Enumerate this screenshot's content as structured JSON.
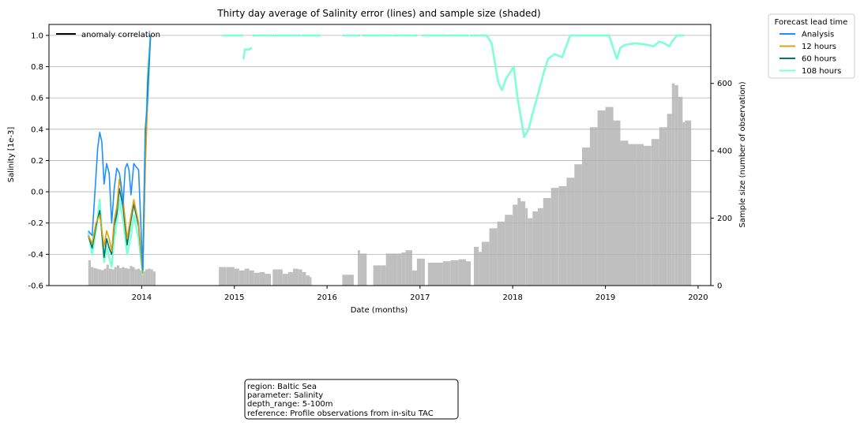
{
  "chart_data": {
    "type": "line",
    "title": "Thirty day average of Salinity error (lines) and sample size (shaded)",
    "xlabel": "Date (months)",
    "ylabel": "Salinity [1e-3]",
    "y2label": "Sample size (number of observation)",
    "xlim": [
      "2013-01-01",
      "2020-02-20"
    ],
    "ylim": [
      -0.6,
      1.07
    ],
    "y2lim": [
      0,
      775
    ],
    "x_ticks": [
      "2014",
      "2015",
      "2016",
      "2017",
      "2018",
      "2019",
      "2020"
    ],
    "y_ticks": [
      "-0.6",
      "-0.4",
      "-0.2",
      "0.0",
      "0.2",
      "0.4",
      "0.6",
      "0.8",
      "1.0"
    ],
    "y2_ticks": [
      "0",
      "200",
      "400",
      "600"
    ],
    "grid": true,
    "legend_title": "Forecast lead time",
    "legend_placement": "outside top-right",
    "anomaly_legend": {
      "label": "anomaly correlation",
      "color": "#000000",
      "placement": "top-left"
    },
    "series": [
      {
        "name": "Analysis",
        "color": "#1e90ff",
        "x": [
          "2013-06-05",
          "2013-06-20",
          "2013-07-05",
          "2013-07-12",
          "2013-07-20",
          "2013-07-28",
          "2013-08-06",
          "2013-08-16",
          "2013-08-26",
          "2013-09-05",
          "2013-09-15",
          "2013-09-25",
          "2013-10-05",
          "2013-10-12",
          "2013-10-20",
          "2013-10-28",
          "2013-11-05",
          "2013-11-12",
          "2013-11-20",
          "2013-12-01",
          "2013-12-10",
          "2013-12-20",
          "2014-01-05",
          "2014-01-15",
          "2014-01-25",
          "2014-02-05"
        ],
        "values": [
          -0.25,
          -0.28,
          0.1,
          0.28,
          0.38,
          0.32,
          0.05,
          0.18,
          0.12,
          -0.2,
          0.02,
          0.15,
          0.12,
          0.05,
          -0.08,
          0.15,
          0.18,
          0.14,
          -0.02,
          0.18,
          0.16,
          0.14,
          -0.5,
          0.4,
          0.6,
          1.0
        ]
      },
      {
        "name": "12 hours",
        "color": "#e0a010",
        "x": [
          "2013-06-05",
          "2013-06-20",
          "2013-07-05",
          "2013-07-20",
          "2013-08-06",
          "2013-08-16",
          "2013-08-26",
          "2013-09-05",
          "2013-09-15",
          "2013-09-25",
          "2013-10-05",
          "2013-10-20",
          "2013-11-05",
          "2013-11-20",
          "2013-12-01",
          "2013-12-20",
          "2014-01-05",
          "2014-01-15",
          "2014-01-25",
          "2014-02-05"
        ],
        "values": [
          -0.28,
          -0.33,
          -0.2,
          -0.15,
          -0.35,
          -0.25,
          -0.3,
          -0.38,
          -0.18,
          -0.1,
          0.08,
          -0.05,
          -0.3,
          -0.15,
          -0.05,
          -0.2,
          -0.52,
          0.15,
          0.6,
          1.0
        ]
      },
      {
        "name": "60 hours",
        "color": "#00756a",
        "x": [
          "2013-06-05",
          "2013-06-20",
          "2013-07-05",
          "2013-07-20",
          "2013-08-06",
          "2013-08-16",
          "2013-08-26",
          "2013-09-05",
          "2013-09-15",
          "2013-09-25",
          "2013-10-05",
          "2013-10-20",
          "2013-11-05",
          "2013-11-20",
          "2013-12-01",
          "2013-12-20",
          "2014-01-05",
          "2014-01-15",
          "2014-01-25",
          "2014-02-05"
        ],
        "values": [
          -0.28,
          -0.36,
          -0.22,
          -0.12,
          -0.42,
          -0.3,
          -0.36,
          -0.4,
          -0.22,
          -0.14,
          0.02,
          -0.1,
          -0.34,
          -0.18,
          -0.08,
          -0.22,
          -0.52,
          0.18,
          0.7,
          1.0
        ]
      },
      {
        "name": "108 hours",
        "color": "#7fffd4",
        "x": [
          "2013-06-05",
          "2013-06-20",
          "2013-07-05",
          "2013-07-20",
          "2013-08-06",
          "2013-08-16",
          "2013-08-26",
          "2013-09-05",
          "2013-09-15",
          "2013-09-25",
          "2013-10-05",
          "2013-10-20",
          "2013-11-05",
          "2013-11-20",
          "2013-12-01",
          "2013-12-20",
          "2014-01-05",
          "2014-01-15",
          "2014-01-25",
          "2014-02-05"
        ],
        "values": [
          -0.26,
          -0.4,
          -0.25,
          -0.05,
          -0.45,
          -0.35,
          -0.42,
          -0.48,
          -0.3,
          -0.2,
          -0.05,
          -0.18,
          -0.4,
          -0.28,
          -0.15,
          -0.3,
          -0.53,
          0.2,
          0.75,
          1.0
        ]
      }
    ],
    "correlation_segments": [
      {
        "x": [
          "2014-11-15",
          "2015-02-05"
        ],
        "values": [
          1.0,
          1.0
        ]
      },
      {
        "x": [
          "2015-02-06",
          "2015-02-12",
          "2015-03-01",
          "2015-03-10"
        ],
        "values": [
          0.85,
          0.91,
          0.91,
          0.92
        ]
      },
      {
        "x": [
          "2015-03-15",
          "2015-06-05"
        ],
        "values": [
          1.0,
          1.0
        ]
      },
      {
        "x": [
          "2015-06-10",
          "2015-09-20"
        ],
        "values": [
          1.0,
          1.0
        ]
      },
      {
        "x": [
          "2015-09-25",
          "2015-12-05"
        ],
        "values": [
          1.0,
          1.0
        ]
      },
      {
        "x": [
          "2016-03-05",
          "2016-05-10"
        ],
        "values": [
          1.0,
          1.0
        ]
      },
      {
        "x": [
          "2016-05-20",
          "2016-09-10"
        ],
        "values": [
          1.0,
          1.0
        ]
      },
      {
        "x": [
          "2016-09-15",
          "2016-12-20"
        ],
        "values": [
          1.0,
          1.0
        ]
      },
      {
        "x": [
          "2017-01-10",
          "2017-04-15"
        ],
        "values": [
          1.0,
          1.0
        ]
      },
      {
        "x": [
          "2017-04-20",
          "2017-07-10"
        ],
        "values": [
          1.0,
          1.0
        ]
      },
      {
        "x": [
          "2017-07-15",
          "2017-09-20",
          "2017-10-10",
          "2017-11-05",
          "2017-11-20",
          "2017-12-05",
          "2018-01-05",
          "2018-01-20",
          "2018-02-05",
          "2018-02-15",
          "2018-03-05",
          "2018-03-20",
          "2018-04-10",
          "2018-05-01",
          "2018-05-20",
          "2018-06-15",
          "2018-07-15",
          "2018-08-15",
          "2018-09-15",
          "2018-10-15",
          "2018-11-15",
          "2018-12-20",
          "2019-01-15",
          "2019-02-01",
          "2019-02-15",
          "2019-03-01",
          "2019-03-20",
          "2019-05-01",
          "2019-06-15",
          "2019-07-10",
          "2019-08-01",
          "2019-08-20",
          "2019-09-10",
          "2019-09-20",
          "2019-10-10",
          "2019-11-05"
        ],
        "values": [
          1.0,
          1.0,
          0.95,
          0.7,
          0.65,
          0.72,
          0.8,
          0.6,
          0.45,
          0.35,
          0.4,
          0.5,
          0.62,
          0.75,
          0.85,
          0.88,
          0.86,
          1.0,
          1.0,
          1.0,
          1.0,
          1.0,
          1.0,
          0.92,
          0.85,
          0.92,
          0.94,
          0.95,
          0.94,
          0.93,
          0.96,
          0.95,
          0.93,
          0.96,
          1.0,
          1.0
        ]
      }
    ],
    "sample_size": {
      "name": "Sample size",
      "color": "#bfbfbf",
      "points": [
        [
          "2013-06-05",
          75
        ],
        [
          "2013-06-15",
          55
        ],
        [
          "2013-06-25",
          52
        ],
        [
          "2013-07-05",
          50
        ],
        [
          "2013-07-15",
          48
        ],
        [
          "2013-07-25",
          46
        ],
        [
          "2013-08-05",
          50
        ],
        [
          "2013-08-15",
          62
        ],
        [
          "2013-08-25",
          50
        ],
        [
          "2013-09-05",
          48
        ],
        [
          "2013-09-15",
          55
        ],
        [
          "2013-09-25",
          60
        ],
        [
          "2013-10-05",
          52
        ],
        [
          "2013-10-15",
          55
        ],
        [
          "2013-10-25",
          52
        ],
        [
          "2013-11-05",
          50
        ],
        [
          "2013-11-15",
          58
        ],
        [
          "2013-11-25",
          55
        ],
        [
          "2013-12-05",
          48
        ],
        [
          "2013-12-15",
          50
        ],
        [
          "2013-12-25",
          45
        ],
        [
          "2014-01-05",
          42
        ],
        [
          "2014-01-15",
          48
        ],
        [
          "2014-01-25",
          50
        ],
        [
          "2014-02-05",
          48
        ],
        [
          "2014-02-15",
          42
        ],
        [
          "2014-02-25",
          0
        ],
        [
          "2014-11-01",
          55
        ],
        [
          "2014-12-01",
          55
        ],
        [
          "2015-01-01",
          50
        ],
        [
          "2015-01-20",
          45
        ],
        [
          "2015-02-10",
          50
        ],
        [
          "2015-03-01",
          45
        ],
        [
          "2015-03-20",
          38
        ],
        [
          "2015-04-10",
          40
        ],
        [
          "2015-05-01",
          35
        ],
        [
          "2015-05-25",
          0
        ],
        [
          "2015-06-01",
          48
        ],
        [
          "2015-06-20",
          48
        ],
        [
          "2015-07-10",
          35
        ],
        [
          "2015-08-01",
          40
        ],
        [
          "2015-08-20",
          50
        ],
        [
          "2015-09-10",
          48
        ],
        [
          "2015-09-25",
          40
        ],
        [
          "2015-10-10",
          30
        ],
        [
          "2015-10-25",
          25
        ],
        [
          "2015-11-01",
          0
        ],
        [
          "2016-03-01",
          32
        ],
        [
          "2016-04-15",
          0
        ],
        [
          "2016-05-01",
          105
        ],
        [
          "2016-05-10",
          95
        ],
        [
          "2016-06-05",
          0
        ],
        [
          "2016-07-01",
          60
        ],
        [
          "2016-08-01",
          60
        ],
        [
          "2016-08-20",
          95
        ],
        [
          "2016-09-10",
          95
        ],
        [
          "2016-10-01",
          95
        ],
        [
          "2016-10-20",
          98
        ],
        [
          "2016-11-05",
          105
        ],
        [
          "2016-12-01",
          45
        ],
        [
          "2016-12-20",
          80
        ],
        [
          "2017-01-05",
          80
        ],
        [
          "2017-01-20",
          0
        ],
        [
          "2017-02-01",
          68
        ],
        [
          "2017-04-01",
          72
        ],
        [
          "2017-05-01",
          75
        ],
        [
          "2017-06-01",
          78
        ],
        [
          "2017-07-01",
          72
        ],
        [
          "2017-07-20",
          0
        ],
        [
          "2017-08-01",
          115
        ],
        [
          "2017-08-20",
          100
        ],
        [
          "2017-09-01",
          130
        ],
        [
          "2017-10-01",
          170
        ],
        [
          "2017-11-01",
          190
        ],
        [
          "2017-12-01",
          210
        ],
        [
          "2018-01-01",
          240
        ],
        [
          "2018-01-20",
          260
        ],
        [
          "2018-02-01",
          250
        ],
        [
          "2018-02-20",
          230
        ],
        [
          "2018-03-01",
          200
        ],
        [
          "2018-03-20",
          220
        ],
        [
          "2018-04-10",
          230
        ],
        [
          "2018-05-01",
          260
        ],
        [
          "2018-06-01",
          290
        ],
        [
          "2018-07-01",
          295
        ],
        [
          "2018-08-01",
          320
        ],
        [
          "2018-09-01",
          360
        ],
        [
          "2018-10-01",
          410
        ],
        [
          "2018-11-01",
          470
        ],
        [
          "2018-12-01",
          520
        ],
        [
          "2019-01-01",
          530
        ],
        [
          "2019-02-01",
          490
        ],
        [
          "2019-03-01",
          430
        ],
        [
          "2019-04-01",
          420
        ],
        [
          "2019-05-01",
          420
        ],
        [
          "2019-06-01",
          415
        ],
        [
          "2019-07-01",
          435
        ],
        [
          "2019-08-01",
          470
        ],
        [
          "2019-09-01",
          510
        ],
        [
          "2019-09-20",
          600
        ],
        [
          "2019-10-01",
          595
        ],
        [
          "2019-10-15",
          560
        ],
        [
          "2019-11-01",
          485
        ],
        [
          "2019-11-10",
          490
        ]
      ]
    },
    "info_box": [
      "region: Baltic Sea",
      "parameter: Salinity",
      "depth_range: 5-100m",
      "reference: Profile observations from in-situ TAC"
    ]
  }
}
